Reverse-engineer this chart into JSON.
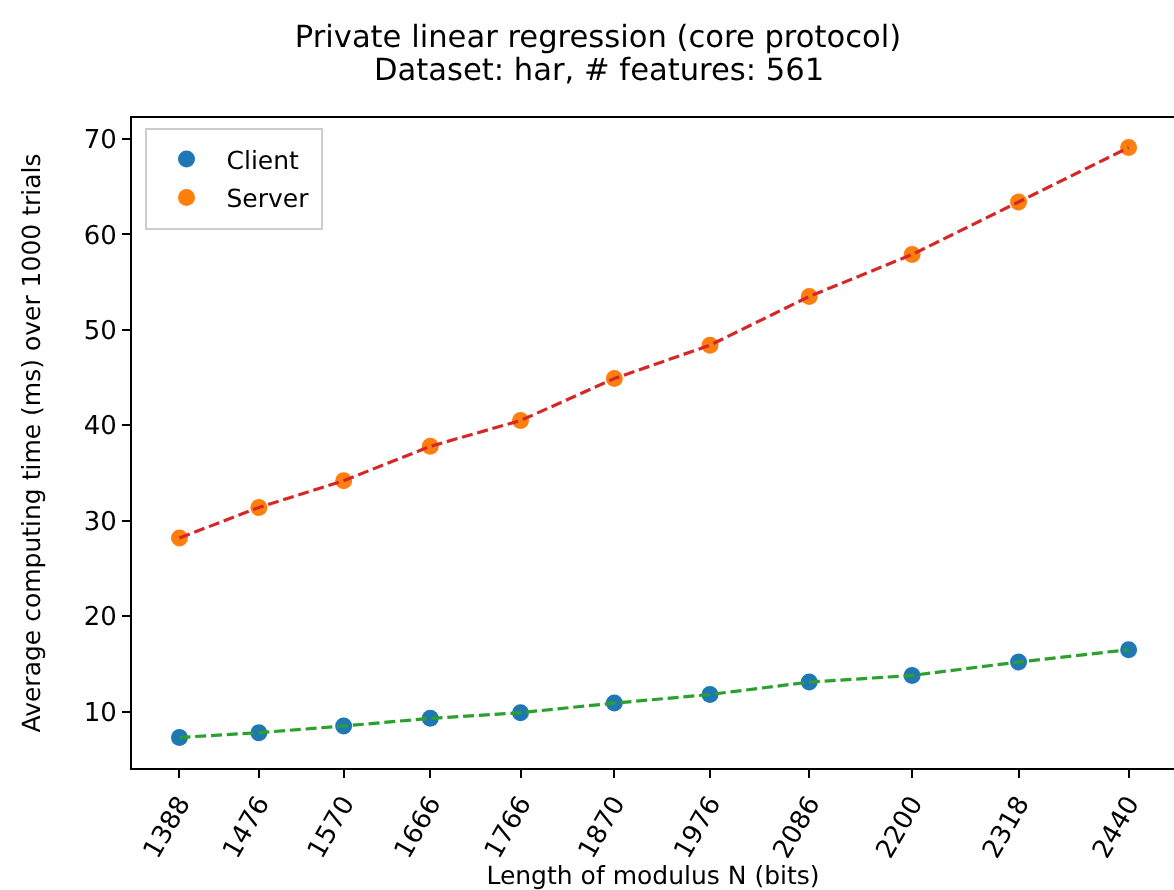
{
  "chart_data": {
    "type": "scatter",
    "title": "Private linear regression (core protocol)",
    "subtitle": "Dataset: har, # features: 561",
    "xlabel": "Length of modulus N (bits)",
    "ylabel": "Average computing time (ms) over 1000 trials",
    "x": [
      1388,
      1476,
      1570,
      1666,
      1766,
      1870,
      1976,
      2086,
      2200,
      2318,
      2440
    ],
    "xlim": [
      1335.4,
      2490.3
    ],
    "xticks": [
      1388,
      1476,
      1570,
      1666,
      1766,
      1870,
      1976,
      2086,
      2200,
      2318,
      2440
    ],
    "ylim": [
      4.1,
      72.2
    ],
    "yticks": [
      10,
      20,
      30,
      40,
      50,
      60,
      70
    ],
    "legend": "top left",
    "marker": "circle",
    "series": [
      {
        "name": "Client",
        "color": "#1f77b4",
        "values": [
          7.3,
          7.8,
          8.5,
          9.3,
          9.9,
          10.9,
          11.8,
          13.1,
          13.8,
          15.2,
          16.5
        ]
      },
      {
        "name": "Server",
        "color": "#ff7f0e",
        "values": [
          28.2,
          31.4,
          34.2,
          37.8,
          40.5,
          44.9,
          48.4,
          53.5,
          57.9,
          63.4,
          69.1
        ]
      },
      {
        "type": "line",
        "color": "#2ca02c",
        "line_style": "dashed",
        "marker": "none",
        "values": [
          7.3,
          7.8,
          8.5,
          9.3,
          9.9,
          10.9,
          11.8,
          13.1,
          13.8,
          15.2,
          16.5
        ]
      },
      {
        "type": "line",
        "color": "#d62728",
        "line_style": "dashed",
        "marker": "none",
        "values": [
          28.2,
          31.4,
          34.2,
          37.8,
          40.5,
          44.9,
          48.4,
          53.5,
          57.9,
          63.4,
          69.1
        ]
      }
    ]
  }
}
